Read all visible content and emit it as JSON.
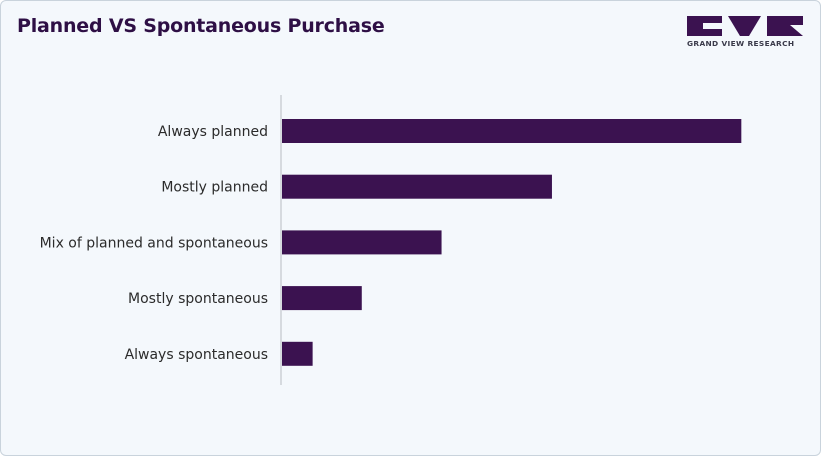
{
  "header": {
    "title": "Planned VS Spontaneous Purchase"
  },
  "logo": {
    "text": "GRAND VIEW RESEARCH",
    "color": "#3b1250"
  },
  "chart_data": {
    "type": "bar",
    "orientation": "horizontal",
    "title": "Planned VS Spontaneous Purchase",
    "xlabel": "",
    "ylabel": "",
    "categories": [
      "Always planned",
      "Mostly planned",
      "Mix of planned and spontaneous",
      "Mostly spontaneous",
      "Always spontaneous"
    ],
    "values": [
      57,
      33.5,
      19.8,
      9.9,
      3.8
    ],
    "xlim": [
      0,
      60
    ],
    "bar_color": "#3b1250",
    "grid": false,
    "legend": "none"
  }
}
